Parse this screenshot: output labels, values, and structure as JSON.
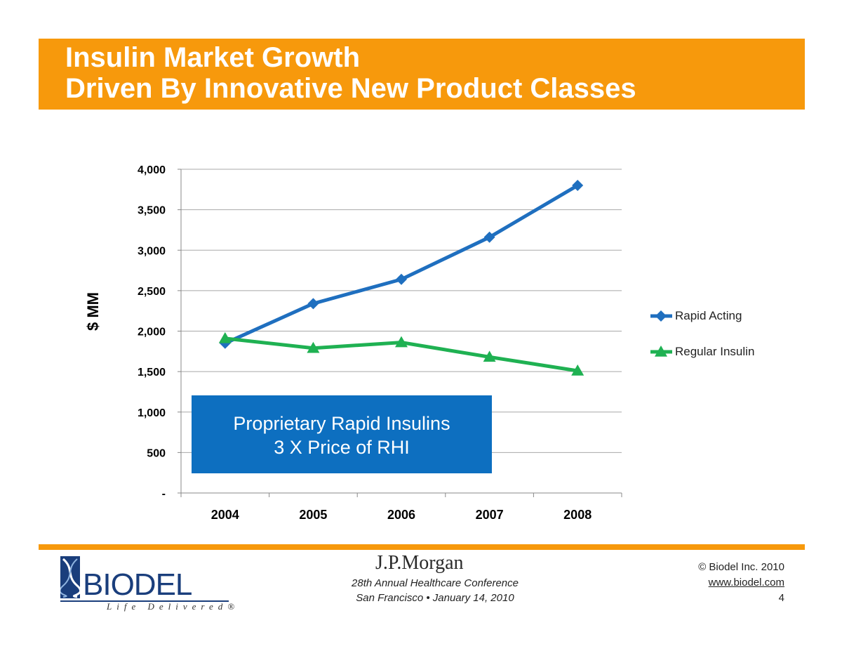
{
  "title": {
    "line1": "Insulin Market Growth",
    "line2": "Driven By Innovative New Product Classes"
  },
  "chart_data": {
    "type": "line",
    "x": [
      "2004",
      "2005",
      "2006",
      "2007",
      "2008"
    ],
    "ylabel": "$ MM",
    "ylim": [
      0,
      4000
    ],
    "yticks": [
      {
        "value": 0,
        "label": "-"
      },
      {
        "value": 500,
        "label": "500"
      },
      {
        "value": 1000,
        "label": "1,000"
      },
      {
        "value": 1500,
        "label": "1,500"
      },
      {
        "value": 2000,
        "label": "2,000"
      },
      {
        "value": 2500,
        "label": "2,500"
      },
      {
        "value": 3000,
        "label": "3,000"
      },
      {
        "value": 3500,
        "label": "3,500"
      },
      {
        "value": 4000,
        "label": "4,000"
      }
    ],
    "grid": true,
    "legend_position": "right",
    "series": [
      {
        "name": "Rapid Acting",
        "values": [
          1850,
          2340,
          2640,
          3160,
          3800
        ],
        "color": "#1f6fbf",
        "marker": "diamond"
      },
      {
        "name": "Regular Insulin",
        "values": [
          1910,
          1790,
          1860,
          1680,
          1510
        ],
        "color": "#1fb152",
        "marker": "triangle"
      }
    ]
  },
  "callout": {
    "line1": "Proprietary Rapid Insulins",
    "line2": "3 X Price  of RHI"
  },
  "footer": {
    "logo_text": "BIODEL",
    "logo_tagline": "Life Delivered®",
    "sponsor": "J.P.Morgan",
    "conference": "28th Annual Healthcare Conference",
    "location": "San Francisco • January 14, 2010",
    "copyright": "© Biodel Inc. 2010",
    "website": "www.biodel.com",
    "page": "4"
  }
}
